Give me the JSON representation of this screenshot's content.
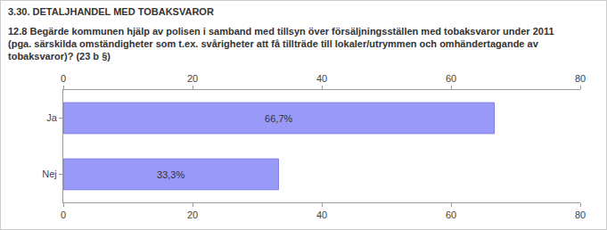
{
  "chart_data": {
    "type": "bar",
    "title": "3.30. DETALJHANDEL MED TOBAKSVAROR",
    "subtitle": "12.8 Begärde kommunen hjälp av polisen i samband med tillsyn över försäljningsställen med tobaksvaror under 2011 (pga. särskilda omständigheter som t.ex. svårigheter att få tillträde till lokaler/utrymmen och omhändertagande av tobaksvaror)? (23 b §)",
    "categories": [
      "Ja",
      "Nej"
    ],
    "values": [
      66.7,
      33.3
    ],
    "value_labels": [
      "66,7%",
      "33,3%"
    ],
    "color": "#9999f8",
    "orientation": "horizontal",
    "data_labels": true,
    "grid": false,
    "xlim": [
      0,
      80
    ],
    "xticks": [
      0,
      20,
      40,
      60,
      80
    ]
  }
}
